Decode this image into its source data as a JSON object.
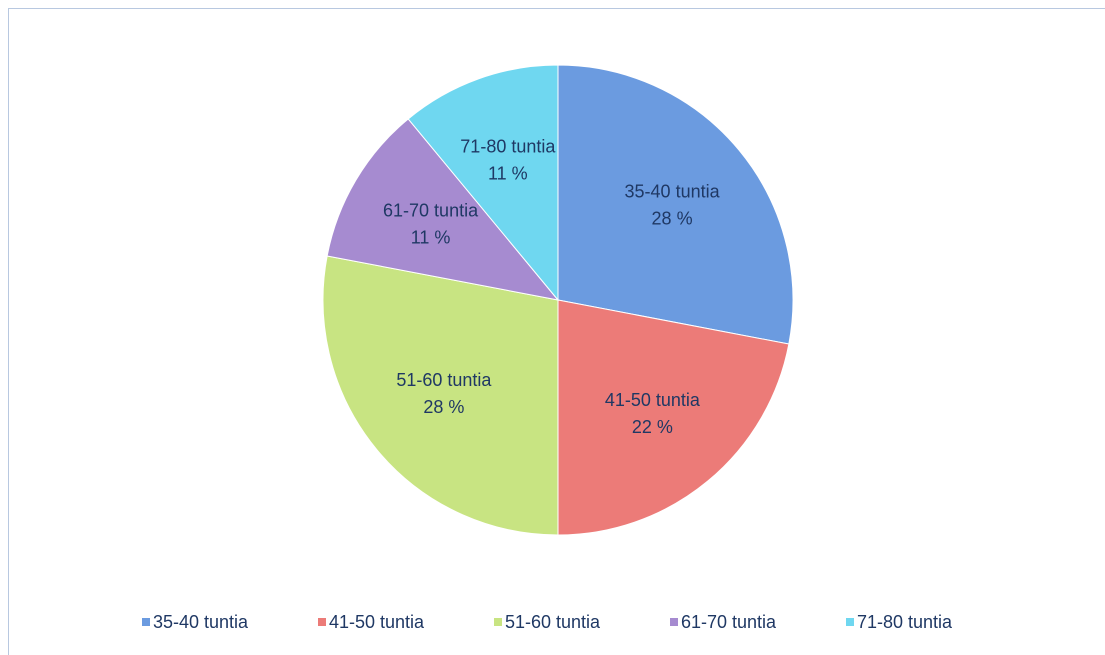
{
  "chart_data": {
    "type": "pie",
    "categories": [
      "35-40 tuntia",
      "41-50 tuntia",
      "51-60 tuntia",
      "61-70 tuntia",
      "71-80 tuntia"
    ],
    "values": [
      28,
      22,
      28,
      11,
      11
    ],
    "value_labels": [
      "28 %",
      "22 %",
      "28 %",
      "11 %",
      "11 %"
    ],
    "colors": [
      "#6b9be0",
      "#ec7b78",
      "#c8e482",
      "#a68bd0",
      "#6fd7f0"
    ],
    "legend": "bottom"
  }
}
